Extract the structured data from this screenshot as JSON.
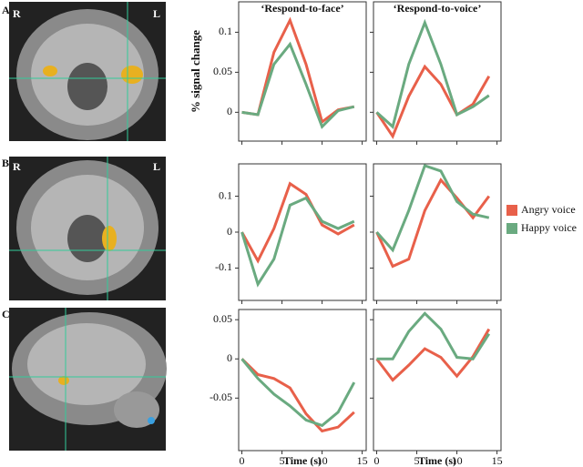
{
  "panels": [
    {
      "label": "A",
      "markers": [
        "R",
        "L"
      ]
    },
    {
      "label": "B",
      "markers": [
        "R",
        "L"
      ]
    },
    {
      "label": "C"
    }
  ],
  "column_titles": [
    "‘Respond-to-face’",
    "‘Respond-to-voice’"
  ],
  "chart_data": [
    {
      "type": "line",
      "ylabel": "% signal change",
      "x": [
        0,
        2,
        4,
        6,
        8,
        10,
        12,
        14
      ],
      "xlim": [
        -0.4,
        15.5
      ],
      "xticks": [
        0,
        5,
        10,
        15
      ],
      "ylim": [
        -0.036,
        0.138
      ],
      "yticks": [
        0,
        0.05,
        0.1
      ],
      "series": [
        {
          "name": "Angry voice",
          "color": "#e8604a",
          "values": [
            0,
            -0.003,
            0.075,
            0.115,
            0.06,
            -0.012,
            0.003,
            0.007
          ]
        },
        {
          "name": "Happy voice",
          "color": "#6aaa80",
          "values": [
            0,
            -0.003,
            0.06,
            0.085,
            0.035,
            -0.018,
            0.002,
            0.007
          ]
        }
      ]
    },
    {
      "type": "line",
      "x": [
        0,
        2,
        4,
        6,
        8,
        10,
        12,
        14
      ],
      "xlim": [
        -0.4,
        15.5
      ],
      "xticks": [
        0,
        5,
        10,
        15
      ],
      "ylim": [
        -0.036,
        0.138
      ],
      "yticks": [
        0,
        0.05,
        0.1
      ],
      "series": [
        {
          "name": "Angry voice",
          "color": "#e8604a",
          "values": [
            0,
            -0.03,
            0.02,
            0.057,
            0.035,
            -0.003,
            0.01,
            0.045
          ]
        },
        {
          "name": "Happy voice",
          "color": "#6aaa80",
          "values": [
            0,
            -0.018,
            0.06,
            0.112,
            0.06,
            -0.003,
            0.007,
            0.021
          ]
        }
      ]
    },
    {
      "type": "line",
      "x": [
        0,
        2,
        4,
        6,
        8,
        10,
        12,
        14
      ],
      "xlim": [
        -0.4,
        15.5
      ],
      "xticks": [
        0,
        5,
        10,
        15
      ],
      "ylim": [
        -0.19,
        0.19
      ],
      "yticks": [
        -0.1,
        0,
        0.1
      ],
      "series": [
        {
          "name": "Angry voice",
          "color": "#e8604a",
          "values": [
            0,
            -0.08,
            0.01,
            0.135,
            0.105,
            0.02,
            -0.005,
            0.02
          ]
        },
        {
          "name": "Happy voice",
          "color": "#6aaa80",
          "values": [
            0,
            -0.145,
            -0.075,
            0.075,
            0.095,
            0.03,
            0.01,
            0.03
          ]
        }
      ]
    },
    {
      "type": "line",
      "x": [
        0,
        2,
        4,
        6,
        8,
        10,
        12,
        14
      ],
      "xlim": [
        -0.4,
        15.5
      ],
      "xticks": [
        0,
        5,
        10,
        15
      ],
      "ylim": [
        -0.19,
        0.19
      ],
      "yticks": [
        -0.1,
        0,
        0.1
      ],
      "series": [
        {
          "name": "Angry voice",
          "color": "#e8604a",
          "values": [
            0,
            -0.095,
            -0.075,
            0.06,
            0.145,
            0.095,
            0.04,
            0.1
          ]
        },
        {
          "name": "Happy voice",
          "color": "#6aaa80",
          "values": [
            0,
            -0.05,
            0.06,
            0.185,
            0.17,
            0.085,
            0.05,
            0.04
          ]
        }
      ]
    },
    {
      "type": "line",
      "xlabel": "Time (s)",
      "x": [
        0,
        2,
        4,
        6,
        8,
        10,
        12,
        14
      ],
      "xlim": [
        -0.4,
        15.5
      ],
      "xticks": [
        0,
        5,
        10,
        15
      ],
      "ylim": [
        -0.117,
        0.063
      ],
      "yticks": [
        -0.05,
        0,
        0.05
      ],
      "series": [
        {
          "name": "Angry voice",
          "color": "#e8604a",
          "values": [
            0,
            -0.02,
            -0.025,
            -0.037,
            -0.07,
            -0.092,
            -0.087,
            -0.068
          ]
        },
        {
          "name": "Happy voice",
          "color": "#6aaa80",
          "values": [
            0,
            -0.025,
            -0.045,
            -0.06,
            -0.078,
            -0.085,
            -0.068,
            -0.03
          ]
        }
      ]
    },
    {
      "type": "line",
      "xlabel": "Time (s)",
      "x": [
        0,
        2,
        4,
        6,
        8,
        10,
        12,
        14
      ],
      "xlim": [
        -0.4,
        15.5
      ],
      "xticks": [
        0,
        5,
        10,
        15
      ],
      "ylim": [
        -0.117,
        0.063
      ],
      "yticks": [
        -0.05,
        0,
        0.05
      ],
      "series": [
        {
          "name": "Angry voice",
          "color": "#e8604a",
          "values": [
            0,
            -0.027,
            -0.008,
            0.013,
            0.002,
            -0.022,
            0.003,
            0.038
          ]
        },
        {
          "name": "Happy voice",
          "color": "#6aaa80",
          "values": [
            0,
            0,
            0.035,
            0.058,
            0.038,
            0.002,
            0,
            0.032
          ]
        }
      ]
    }
  ]
}
